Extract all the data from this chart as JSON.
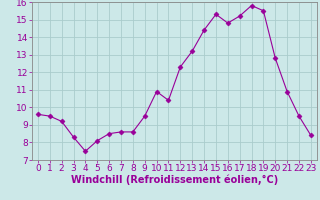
{
  "x": [
    0,
    1,
    2,
    3,
    4,
    5,
    6,
    7,
    8,
    9,
    10,
    11,
    12,
    13,
    14,
    15,
    16,
    17,
    18,
    19,
    20,
    21,
    22,
    23
  ],
  "y": [
    9.6,
    9.5,
    9.2,
    8.3,
    7.5,
    8.1,
    8.5,
    8.6,
    8.6,
    9.5,
    10.9,
    10.4,
    12.3,
    13.2,
    14.4,
    15.3,
    14.8,
    15.2,
    15.8,
    15.5,
    12.8,
    10.9,
    9.5,
    8.4
  ],
  "line_color": "#990099",
  "marker": "D",
  "marker_size": 2.5,
  "bg_color": "#cce8e8",
  "grid_color": "#aacccc",
  "xlabel": "Windchill (Refroidissement éolien,°C)",
  "ylim": [
    7,
    16
  ],
  "xlim": [
    -0.5,
    23.5
  ],
  "yticks": [
    7,
    8,
    9,
    10,
    11,
    12,
    13,
    14,
    15,
    16
  ],
  "xticks": [
    0,
    1,
    2,
    3,
    4,
    5,
    6,
    7,
    8,
    9,
    10,
    11,
    12,
    13,
    14,
    15,
    16,
    17,
    18,
    19,
    20,
    21,
    22,
    23
  ],
  "xlabel_fontsize": 7,
  "tick_fontsize": 6.5,
  "label_color": "#990099",
  "spine_color": "#888888"
}
